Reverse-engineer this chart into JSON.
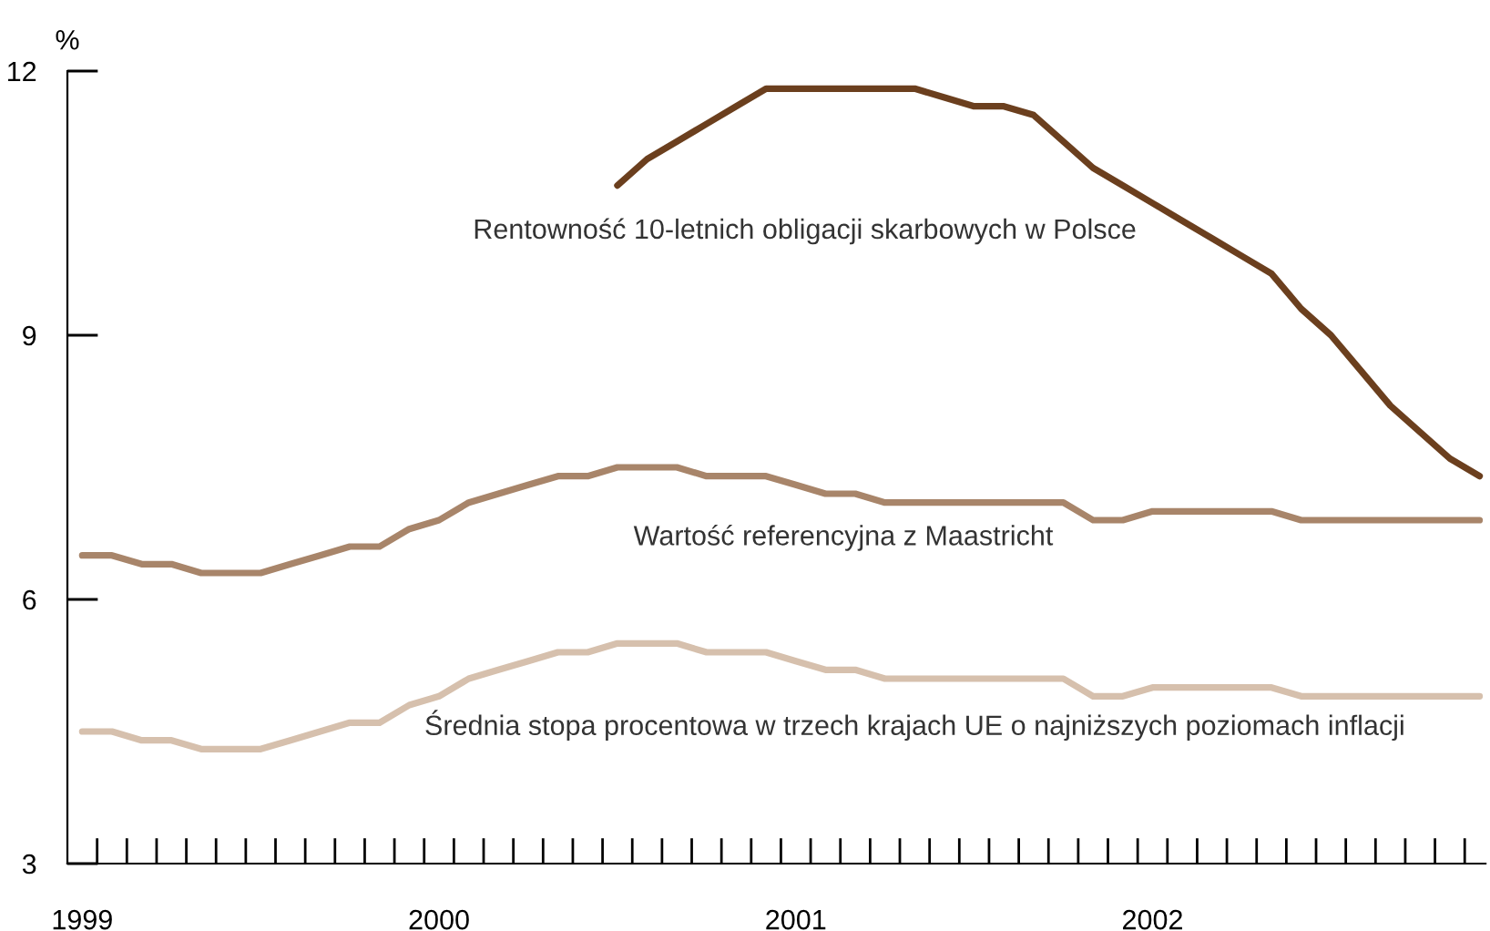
{
  "chart_data": {
    "type": "line",
    "ylabel": "%",
    "categories": [
      "1999",
      null,
      null,
      null,
      null,
      null,
      null,
      null,
      null,
      null,
      null,
      null,
      "2000",
      null,
      null,
      null,
      null,
      null,
      null,
      null,
      null,
      null,
      null,
      null,
      "2001",
      null,
      null,
      null,
      null,
      null,
      null,
      null,
      null,
      null,
      null,
      null,
      "2002",
      null,
      null,
      null,
      null,
      null,
      null,
      null,
      null,
      null,
      null,
      null
    ],
    "series": [
      {
        "name": "Rentowność 10-letnich obligacji skarbowych w Polsce",
        "color": "#6b3f1e",
        "values": [
          null,
          null,
          null,
          null,
          null,
          null,
          null,
          null,
          null,
          null,
          null,
          null,
          null,
          null,
          null,
          null,
          null,
          null,
          10.7,
          11.0,
          11.2,
          11.4,
          11.6,
          11.8,
          11.8,
          11.8,
          11.8,
          11.8,
          11.8,
          11.7,
          11.6,
          11.6,
          11.5,
          11.2,
          10.9,
          10.7,
          10.5,
          10.3,
          10.1,
          9.9,
          9.7,
          9.3,
          9.0,
          8.6,
          8.2,
          7.9,
          7.6,
          7.4
        ]
      },
      {
        "name": "Wartość referencyjna z Maastricht",
        "color": "#a8856a",
        "values": [
          6.5,
          6.5,
          6.4,
          6.4,
          6.3,
          6.3,
          6.3,
          6.4,
          6.5,
          6.6,
          6.6,
          6.8,
          6.9,
          7.1,
          7.2,
          7.3,
          7.4,
          7.4,
          7.5,
          7.5,
          7.5,
          7.4,
          7.4,
          7.4,
          7.3,
          7.2,
          7.2,
          7.1,
          7.1,
          7.1,
          7.1,
          7.1,
          7.1,
          7.1,
          6.9,
          6.9,
          7.0,
          7.0,
          7.0,
          7.0,
          7.0,
          6.9,
          6.9,
          6.9,
          6.9,
          6.9,
          6.9,
          6.9
        ]
      },
      {
        "name": "Średnia stopa procentowa w trzech krajach UE o najniższych poziomach inflacji",
        "color": "#d6c0ad",
        "values": [
          4.5,
          4.5,
          4.4,
          4.4,
          4.3,
          4.3,
          4.3,
          4.4,
          4.5,
          4.6,
          4.6,
          4.8,
          4.9,
          5.1,
          5.2,
          5.3,
          5.4,
          5.4,
          5.5,
          5.5,
          5.5,
          5.4,
          5.4,
          5.4,
          5.3,
          5.2,
          5.2,
          5.1,
          5.1,
          5.1,
          5.1,
          5.1,
          5.1,
          5.1,
          4.9,
          4.9,
          5.0,
          5.0,
          5.0,
          5.0,
          5.0,
          4.9,
          4.9,
          4.9,
          4.9,
          4.9,
          4.9,
          4.9
        ]
      }
    ],
    "ylim": [
      3,
      12
    ],
    "yticks": [
      3,
      6,
      9,
      12
    ]
  }
}
